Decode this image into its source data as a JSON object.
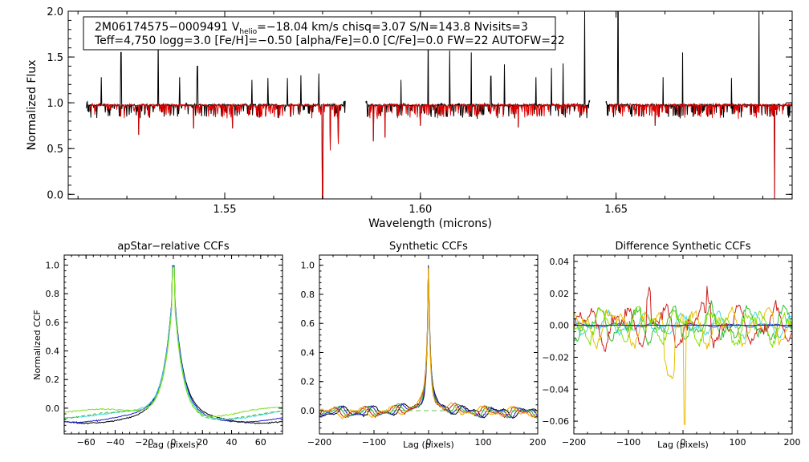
{
  "chart_data": [
    {
      "id": "spectrum",
      "type": "line",
      "xlabel": "Wavelength (microns)",
      "ylabel": "Normalized Flux",
      "xlim": [
        1.51,
        1.695
      ],
      "ylim": [
        -0.05,
        2.0
      ],
      "xticks": [
        1.55,
        1.6,
        1.65
      ],
      "xtick_labels": [
        "1.55",
        "1.60",
        "1.65"
      ],
      "yticks": [
        0.0,
        0.5,
        1.0,
        1.5,
        2.0
      ],
      "ytick_labels": [
        "0.0",
        "0.5",
        "1.0",
        "1.5",
        "2.0"
      ],
      "chips": [
        [
          1.5145,
          1.5808
        ],
        [
          1.586,
          1.6433
        ],
        [
          1.6474,
          1.6955
        ]
      ],
      "spikes": [
        {
          "x": 1.5185,
          "y": 1.28
        },
        {
          "x": 1.5235,
          "y": 1.55
        },
        {
          "x": 1.528,
          "y": 1.3
        },
        {
          "x": 1.533,
          "y": 1.7
        },
        {
          "x": 1.5385,
          "y": 1.28
        },
        {
          "x": 1.543,
          "y": 1.4
        },
        {
          "x": 1.557,
          "y": 1.25
        },
        {
          "x": 1.561,
          "y": 1.27
        },
        {
          "x": 1.566,
          "y": 1.27
        },
        {
          "x": 1.5695,
          "y": 1.3
        },
        {
          "x": 1.574,
          "y": 1.32
        },
        {
          "x": 1.595,
          "y": 1.25
        },
        {
          "x": 1.602,
          "y": 1.8
        },
        {
          "x": 1.6075,
          "y": 1.57
        },
        {
          "x": 1.613,
          "y": 1.55
        },
        {
          "x": 1.618,
          "y": 1.29
        },
        {
          "x": 1.6215,
          "y": 1.42
        },
        {
          "x": 1.6295,
          "y": 1.28
        },
        {
          "x": 1.6335,
          "y": 1.38
        },
        {
          "x": 1.6365,
          "y": 1.43
        },
        {
          "x": 1.642,
          "y": 2.0
        },
        {
          "x": 1.6505,
          "y": 2.0
        },
        {
          "x": 1.662,
          "y": 1.28
        },
        {
          "x": 1.667,
          "y": 1.55
        },
        {
          "x": 1.6795,
          "y": 1.27
        },
        {
          "x": 1.6865,
          "y": 2.0
        }
      ],
      "dips": [
        {
          "x": 1.575,
          "y": -0.05
        },
        {
          "x": 1.577,
          "y": 0.48
        },
        {
          "x": 1.579,
          "y": 0.55
        },
        {
          "x": 1.588,
          "y": 0.58
        },
        {
          "x": 1.591,
          "y": 0.62
        },
        {
          "x": 1.528,
          "y": 0.65
        },
        {
          "x": 1.542,
          "y": 0.72
        },
        {
          "x": 1.552,
          "y": 0.72
        },
        {
          "x": 1.6,
          "y": 0.75
        },
        {
          "x": 1.625,
          "y": 0.73
        },
        {
          "x": 1.66,
          "y": 0.75
        },
        {
          "x": 1.6905,
          "y": -0.05
        }
      ],
      "series": [
        {
          "name": "observed",
          "color": "#000000"
        },
        {
          "name": "model",
          "color": "#e00000"
        }
      ]
    },
    {
      "id": "apstar",
      "type": "line",
      "title": "apStar−relative CCFs",
      "xlabel": "Lag (pixels)",
      "ylabel": "Normalized CCF",
      "xlim": [
        -75,
        75
      ],
      "ylim": [
        -0.18,
        1.07
      ],
      "xticks": [
        -60,
        -40,
        -20,
        0,
        20,
        40,
        60
      ],
      "xtick_labels": [
        "−60",
        "−40",
        "−20",
        "0",
        "20",
        "40",
        "60"
      ],
      "yticks": [
        0.0,
        0.2,
        0.4,
        0.6,
        0.8,
        1.0
      ],
      "ytick_labels": [
        "0.0",
        "0.2",
        "0.4",
        "0.6",
        "0.8",
        "1.0"
      ],
      "width": 6,
      "series": [
        {
          "name": "black",
          "color": "#000000",
          "offset": -0.01
        },
        {
          "name": "blue",
          "color": "#2020d0",
          "offset": -0.005
        },
        {
          "name": "cyan",
          "color": "#40d8e8",
          "offset": 0.012
        },
        {
          "name": "green",
          "color": "#40c040",
          "offset": 0.005,
          "dashed": true
        },
        {
          "name": "lime",
          "color": "#80e020",
          "offset": 0.02
        }
      ]
    },
    {
      "id": "synthetic",
      "type": "line",
      "title": "Synthetic CCFs",
      "xlabel": "Lag (pixels)",
      "xlim": [
        -200,
        200
      ],
      "ylim": [
        -0.16,
        1.07
      ],
      "xticks": [
        -200,
        -100,
        0,
        100,
        200
      ],
      "xtick_labels": [
        "−200",
        "−100",
        "0",
        "100",
        "200"
      ],
      "yticks": [
        0.0,
        0.2,
        0.4,
        0.6,
        0.8,
        1.0
      ],
      "ytick_labels": [
        "0.0",
        "0.2",
        "0.4",
        "0.6",
        "0.8",
        "1.0"
      ],
      "zero_line": true,
      "series": [
        {
          "name": "black",
          "color": "#000000"
        },
        {
          "name": "blue",
          "color": "#2020d0"
        },
        {
          "name": "green",
          "color": "#30b030"
        },
        {
          "name": "red",
          "color": "#d02020"
        },
        {
          "name": "orange",
          "color": "#e8b000"
        }
      ]
    },
    {
      "id": "difference",
      "type": "line",
      "title": "Difference Synthetic CCFs",
      "xlabel": "Lag (pixels)",
      "xlim": [
        -200,
        200
      ],
      "ylim": [
        -0.068,
        0.044
      ],
      "xticks": [
        -200,
        -100,
        0,
        100,
        200
      ],
      "xtick_labels": [
        "−200",
        "−100",
        "0",
        "100",
        "200"
      ],
      "yticks": [
        -0.06,
        -0.04,
        -0.02,
        0.0,
        0.02,
        0.04
      ],
      "ytick_labels": [
        "−0.06",
        "−0.04",
        "−0.02",
        "0.00",
        "0.02",
        "0.04"
      ],
      "zero_line": true,
      "series": [
        {
          "name": "blue",
          "color": "#2020d0"
        },
        {
          "name": "cyan",
          "color": "#40d8e8"
        },
        {
          "name": "green",
          "color": "#30c030"
        },
        {
          "name": "red",
          "color": "#d02020"
        },
        {
          "name": "orange",
          "color": "#e8c000"
        },
        {
          "name": "lime",
          "color": "#80e000"
        }
      ]
    }
  ],
  "info": {
    "line1": "2M06174575−0009491  V",
    "line1_sub": "helio",
    "line1_rest": "=−18.04 km/s  chisq=3.07  S/N=143.8  Nvisits=3",
    "line2": "Teff=4,750 logg=3.0 [Fe/H]=−0.50 [alpha/Fe]=0.0 [C/Fe]=0.0 FW=22 AUTOFW=22"
  }
}
